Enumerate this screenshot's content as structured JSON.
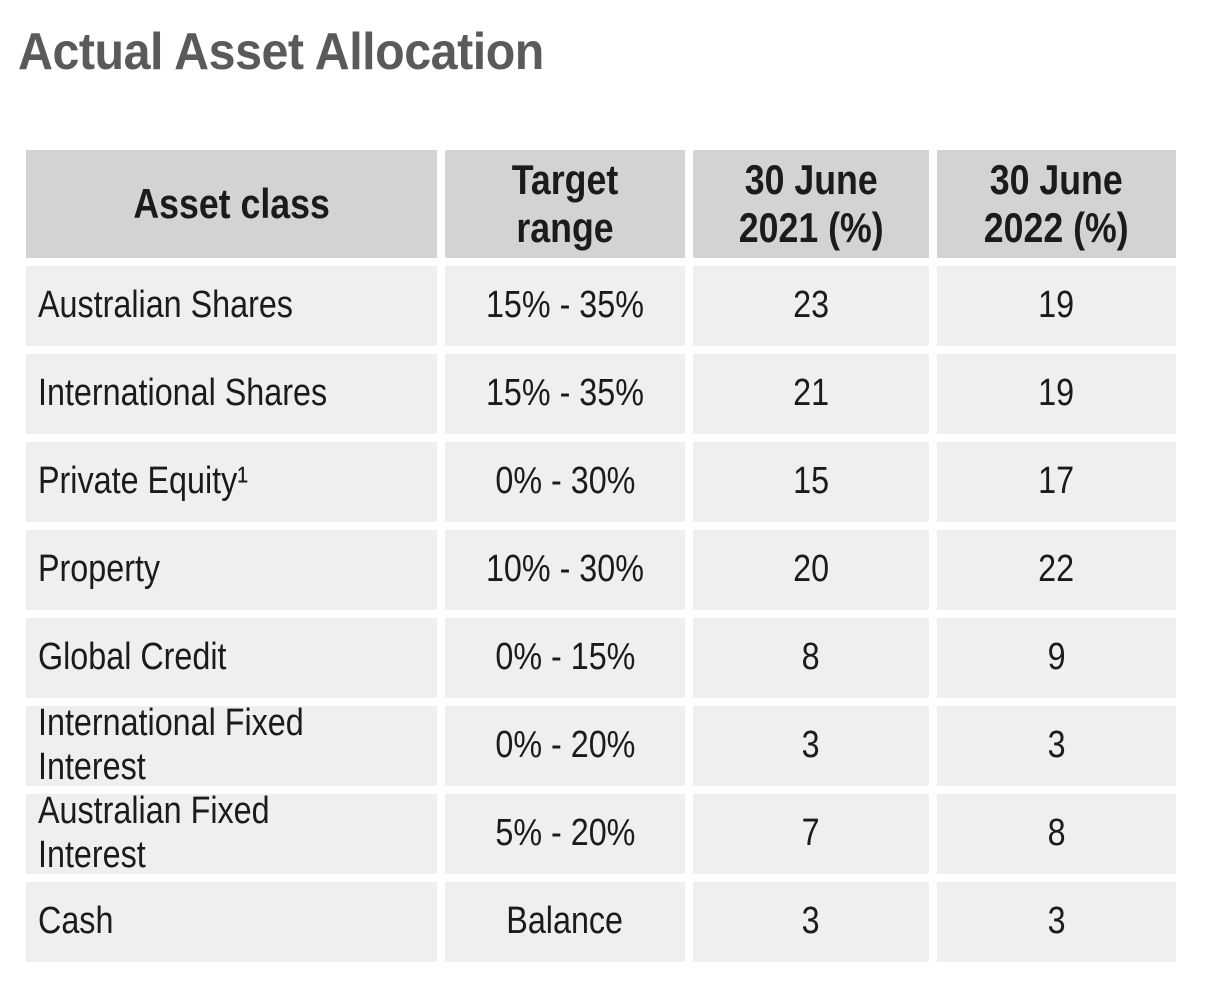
{
  "title": "Actual Asset Allocation",
  "colors": {
    "title_text": "#595a5c",
    "header_bg": "#d2d3d5",
    "row_bg": "#efeff1",
    "cell_text": "#1b1b1b",
    "gap": "#ffffff"
  },
  "table": {
    "headers": [
      "Asset class",
      "Target range",
      "30 June\n2021 (%)",
      "30 June\n2022 (%)"
    ],
    "rows": [
      {
        "asset_class": "Australian Shares",
        "target_range": "15% - 35%",
        "jun_2021": "23",
        "jun_2022": "19"
      },
      {
        "asset_class": "International Shares",
        "target_range": "15% - 35%",
        "jun_2021": "21",
        "jun_2022": "19"
      },
      {
        "asset_class": "Private Equity¹",
        "target_range": "0% - 30%",
        "jun_2021": "15",
        "jun_2022": "17"
      },
      {
        "asset_class": "Property",
        "target_range": "10% - 30%",
        "jun_2021": "20",
        "jun_2022": "22"
      },
      {
        "asset_class": "Global Credit",
        "target_range": "0% - 15%",
        "jun_2021": "8",
        "jun_2022": "9"
      },
      {
        "asset_class": "International Fixed Interest",
        "target_range": "0% - 20%",
        "jun_2021": "3",
        "jun_2022": "3"
      },
      {
        "asset_class": "Australian Fixed Interest",
        "target_range": "5% - 20%",
        "jun_2021": "7",
        "jun_2022": "8"
      },
      {
        "asset_class": "Cash",
        "target_range": "Balance",
        "jun_2021": "3",
        "jun_2022": "3"
      }
    ]
  }
}
